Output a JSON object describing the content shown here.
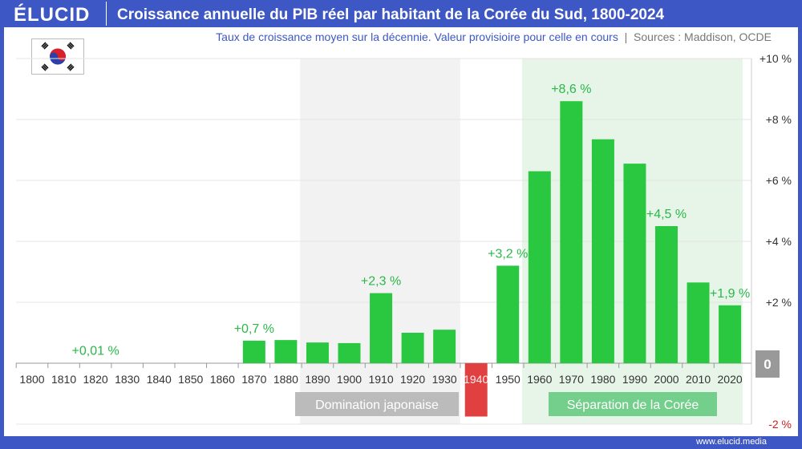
{
  "header": {
    "logo": "ÉLUCID",
    "title": "Croissance annuelle du PIB réel par habitant de la Corée du Sud, 1800-2024"
  },
  "subtitle": {
    "main": "Taux de croissance moyen sur la décennie. Valeur provisioire pour celle en cours",
    "separator": "|",
    "sources": "Sources : Maddison, OCDE"
  },
  "footer": {
    "url": "www.elucid.media"
  },
  "colors": {
    "positive": "#2ac840",
    "negative": "#e04040",
    "brand": "#3d57c4",
    "label": "#2ab84a"
  },
  "chart_data": {
    "type": "bar",
    "categories": [
      "1800",
      "1810",
      "1820",
      "1830",
      "1840",
      "1850",
      "1860",
      "1870",
      "1880",
      "1890",
      "1900",
      "1910",
      "1920",
      "1930",
      "1940",
      "1950",
      "1960",
      "1970",
      "1980",
      "1990",
      "2000",
      "2010",
      "2020"
    ],
    "values": [
      0.01,
      0.01,
      0.01,
      0.01,
      0.01,
      0.01,
      0.01,
      0.74,
      0.76,
      0.68,
      0.66,
      2.3,
      1.0,
      1.1,
      -1.75,
      3.2,
      6.3,
      8.6,
      7.35,
      6.55,
      4.5,
      2.65,
      1.9
    ],
    "ylim": [
      -2,
      10
    ],
    "yticks": [
      {
        "v": 10,
        "label": "+10 %"
      },
      {
        "v": 8,
        "label": "+8 %"
      },
      {
        "v": 6,
        "label": "+6 %"
      },
      {
        "v": 4,
        "label": "+4 %"
      },
      {
        "v": 2,
        "label": "+2 %"
      },
      {
        "v": 0,
        "label": "0"
      },
      {
        "v": -2,
        "label": "-2 %"
      }
    ],
    "grid": true,
    "data_labels": [
      {
        "category": "1820",
        "text": "+0,01 %"
      },
      {
        "category": "1870",
        "text": "+0,7 %"
      },
      {
        "category": "1910",
        "text": "+2,3 %"
      },
      {
        "category": "1950",
        "text": "+3,2 %"
      },
      {
        "category": "1970",
        "text": "+8,6 %"
      },
      {
        "category": "2000",
        "text": "+4,5 %"
      },
      {
        "category": "2020",
        "text": "+1,9 %"
      }
    ],
    "periods": [
      {
        "label": "Domination japonaise",
        "from": 1885,
        "to": 1935,
        "color": "#f2f2f2",
        "badge": "#bbbbbb"
      },
      {
        "label": "Séparation de la Corée",
        "from": 1955,
        "to": 2024,
        "color": "#e6f5e8",
        "badge": "#74cf8c"
      }
    ]
  }
}
